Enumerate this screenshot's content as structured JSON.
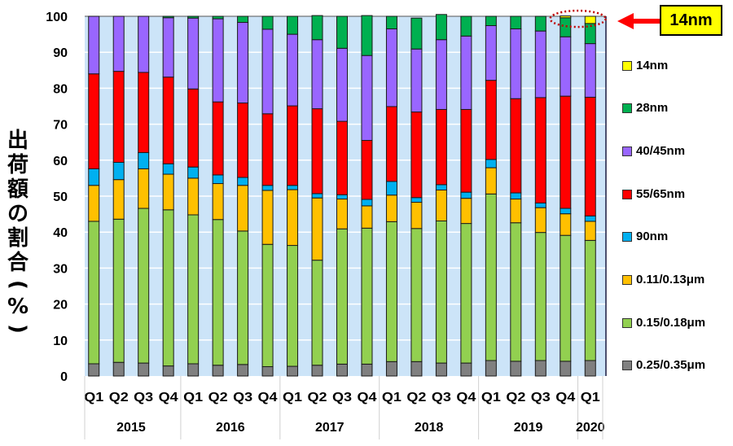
{
  "chart_data": {
    "type": "bar",
    "stacked": true,
    "title": "",
    "ylabel": "出荷額の割合(%)",
    "ylabel_chars": [
      "出",
      "荷",
      "額",
      "の",
      "割",
      "合",
      "(",
      "%",
      ")"
    ],
    "xlabel": "",
    "ylim": [
      0,
      100
    ],
    "yticks": [
      0,
      10,
      20,
      30,
      40,
      50,
      60,
      70,
      80,
      90,
      100
    ],
    "grid": true,
    "legend_position": "right",
    "categories": [
      "Q1",
      "Q2",
      "Q3",
      "Q4",
      "Q1",
      "Q2",
      "Q3",
      "Q4",
      "Q1",
      "Q2",
      "Q3",
      "Q4",
      "Q1",
      "Q2",
      "Q3",
      "Q4",
      "Q1",
      "Q2",
      "Q3",
      "Q4",
      "Q1"
    ],
    "year_groups": [
      {
        "label": "2015",
        "count": 4
      },
      {
        "label": "2016",
        "count": 4
      },
      {
        "label": "2017",
        "count": 4
      },
      {
        "label": "2018",
        "count": 4
      },
      {
        "label": "2019",
        "count": 4
      },
      {
        "label": "2020",
        "count": 1
      }
    ],
    "series": [
      {
        "name": "0.25/0.35μm",
        "color": "#808080",
        "values": [
          3.4,
          3.8,
          3.6,
          2.8,
          3.4,
          3.0,
          3.2,
          2.6,
          2.7,
          3.0,
          3.3,
          3.3,
          4.0,
          4.0,
          3.6,
          3.6,
          4.3,
          4.1,
          4.3,
          4.1,
          4.3
        ]
      },
      {
        "name": "0.15/0.18μm",
        "color": "#92d050",
        "values": [
          39.6,
          39.8,
          43.0,
          43.4,
          41.4,
          40.5,
          37.1,
          34.0,
          33.6,
          29.2,
          37.6,
          37.8,
          38.9,
          37.0,
          39.5,
          38.8,
          46.3,
          38.5,
          35.6,
          35.0,
          33.4
        ]
      },
      {
        "name": "0.11/0.13μm",
        "color": "#ffc000",
        "values": [
          10.0,
          11.0,
          11.0,
          9.9,
          10.2,
          10.0,
          12.7,
          15.0,
          15.5,
          17.3,
          8.3,
          6.2,
          7.4,
          7.3,
          8.6,
          7.0,
          7.3,
          6.6,
          6.9,
          6.0,
          5.3
        ]
      },
      {
        "name": "90nm",
        "color": "#00b0f0",
        "values": [
          4.6,
          4.8,
          4.5,
          2.9,
          3.1,
          2.4,
          2.2,
          1.4,
          1.2,
          1.2,
          1.2,
          1.8,
          3.8,
          1.3,
          1.5,
          1.7,
          2.3,
          1.7,
          1.3,
          1.5,
          1.5
        ]
      },
      {
        "name": "55/65nm",
        "color": "#ff0000",
        "values": [
          26.4,
          25.3,
          22.3,
          24.1,
          21.7,
          20.3,
          20.7,
          19.9,
          22.1,
          23.6,
          20.4,
          16.4,
          20.8,
          23.8,
          20.9,
          23.0,
          22.0,
          26.2,
          29.3,
          31.2,
          33.0
        ]
      },
      {
        "name": "40/45nm",
        "color": "#9966ff",
        "values": [
          16.0,
          15.3,
          15.6,
          16.5,
          19.7,
          23.1,
          22.4,
          23.5,
          19.9,
          19.2,
          20.3,
          23.6,
          21.6,
          17.5,
          19.4,
          20.4,
          15.2,
          19.4,
          18.5,
          16.5,
          14.9
        ]
      },
      {
        "name": "28nm",
        "color": "#00b050",
        "values": [
          0,
          0,
          0,
          0.4,
          0.5,
          0.7,
          1.7,
          3.6,
          5.0,
          6.7,
          8.9,
          11.1,
          3.5,
          8.6,
          7.0,
          5.5,
          2.6,
          3.5,
          4.1,
          5.3,
          5.6
        ]
      },
      {
        "name": "14nm",
        "color": "#ffff00",
        "values": [
          0,
          0,
          0,
          0,
          0,
          0,
          0,
          0,
          0,
          0,
          0,
          0,
          0,
          0,
          0,
          0,
          0,
          0,
          0,
          0.5,
          2.0
        ]
      }
    ],
    "legend_order": [
      "14nm",
      "28nm",
      "40/45nm",
      "55/65nm",
      "90nm",
      "0.11/0.13μm",
      "0.15/0.18μm",
      "0.25/0.35μm"
    ],
    "annotations": [
      {
        "text": "14nm",
        "type": "callout-box-with-arrow",
        "background": "#ffff00",
        "target": "14nm segments in 2019 Q4 and 2020 Q1",
        "highlight": "dotted red ellipse"
      }
    ]
  },
  "colors": {
    "plot_background": "#cce4f8",
    "gridline": "#ffffff",
    "arrow": "#ff0000",
    "ellipse": "#c00000"
  }
}
